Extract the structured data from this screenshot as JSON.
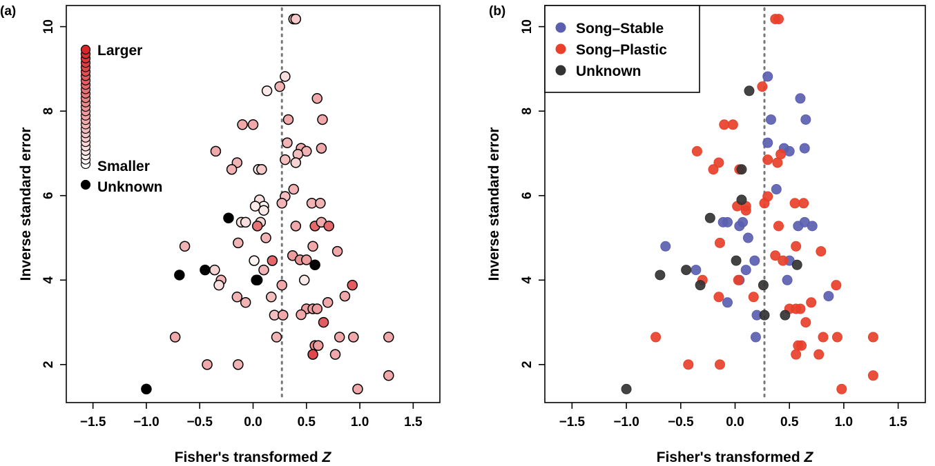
{
  "chart_data": [
    {
      "panel_label": "(a)",
      "type": "scatter",
      "xlabel": "Fisher's transformed",
      "xlabel_italic": "Z",
      "ylabel": "Inverse standard error",
      "xlim": [
        -1.75,
        1.75
      ],
      "ylim": [
        1.1,
        10.5
      ],
      "x_ticks": [
        -1.5,
        -1.0,
        -0.5,
        0.0,
        0.5,
        1.0,
        1.5
      ],
      "x_tick_labels": [
        "−1.5",
        "−1.0",
        "−0.5",
        "0.0",
        "0.5",
        "1.0",
        "1.5"
      ],
      "y_ticks": [
        2,
        4,
        6,
        8,
        10
      ],
      "y_tick_labels": [
        "2",
        "4",
        "6",
        "8",
        "10"
      ],
      "reference_line_x": 0.27,
      "legend": {
        "kind": "gradient",
        "top_label": "Larger",
        "bottom_label": "Smaller",
        "unknown_label": "Unknown",
        "gradient_from": "#ffffff",
        "gradient_to": "#d9262a",
        "unknown_color": "#000000",
        "steps": 27
      },
      "colors": {
        "smaller": "#ffffff",
        "larger": "#d9262a",
        "unknown": "#000000",
        "edge": "#000000",
        "reference_line": "#777777"
      },
      "points": [
        {
          "x": 0.38,
          "y": 10.18,
          "m": 0.3
        },
        {
          "x": 0.4,
          "y": 10.18,
          "m": 0.25
        },
        {
          "x": 0.3,
          "y": 8.82,
          "m": 0.15
        },
        {
          "x": 0.13,
          "y": 8.48,
          "m": 0.1
        },
        {
          "x": 0.25,
          "y": 8.58,
          "m": 0.35
        },
        {
          "x": 0.6,
          "y": 8.3,
          "m": 0.4
        },
        {
          "x": 0.33,
          "y": 7.8,
          "m": 0.4
        },
        {
          "x": 0.65,
          "y": 7.8,
          "m": 0.4
        },
        {
          "x": -0.1,
          "y": 7.68,
          "m": 0.4
        },
        {
          "x": 0.0,
          "y": 7.68,
          "m": 0.4
        },
        {
          "x": 0.32,
          "y": 7.25,
          "m": 0.35
        },
        {
          "x": 0.45,
          "y": 7.12,
          "m": 0.4
        },
        {
          "x": 0.5,
          "y": 7.05,
          "m": 0.35
        },
        {
          "x": 0.64,
          "y": 7.12,
          "m": 0.4
        },
        {
          "x": -0.35,
          "y": 7.05,
          "m": 0.4
        },
        {
          "x": 0.42,
          "y": 6.98,
          "m": 0.3
        },
        {
          "x": 0.3,
          "y": 6.85,
          "m": 0.3
        },
        {
          "x": 0.4,
          "y": 6.78,
          "m": 0.2
        },
        {
          "x": -0.15,
          "y": 6.78,
          "m": 0.35
        },
        {
          "x": -0.2,
          "y": 6.62,
          "m": 0.35
        },
        {
          "x": 0.05,
          "y": 6.62,
          "m": 0.1
        },
        {
          "x": 0.08,
          "y": 6.62,
          "m": 0.25
        },
        {
          "x": 0.38,
          "y": 6.15,
          "m": 0.35
        },
        {
          "x": 0.3,
          "y": 5.98,
          "m": 0.3
        },
        {
          "x": 0.27,
          "y": 5.82,
          "m": 0.35
        },
        {
          "x": 0.55,
          "y": 5.82,
          "m": 0.35
        },
        {
          "x": 0.63,
          "y": 5.82,
          "m": 0.35
        },
        {
          "x": 0.06,
          "y": 5.9,
          "m": 0.15
        },
        {
          "x": 0.1,
          "y": 5.75,
          "m": 0.05
        },
        {
          "x": 0.02,
          "y": 5.75,
          "m": 0.1
        },
        {
          "x": 0.1,
          "y": 5.65,
          "m": 0.1
        },
        {
          "x": -0.23,
          "y": 5.47,
          "m": -1
        },
        {
          "x": -0.11,
          "y": 5.37,
          "m": 0.15
        },
        {
          "x": -0.07,
          "y": 5.37,
          "m": 0.15
        },
        {
          "x": 0.07,
          "y": 5.37,
          "m": 0.2
        },
        {
          "x": 0.04,
          "y": 5.28,
          "m": 0.65
        },
        {
          "x": 0.4,
          "y": 5.28,
          "m": 0.4
        },
        {
          "x": 0.58,
          "y": 5.28,
          "m": 0.7
        },
        {
          "x": 0.64,
          "y": 5.37,
          "m": 0.4
        },
        {
          "x": 0.71,
          "y": 5.28,
          "m": 0.7
        },
        {
          "x": 0.12,
          "y": 5.0,
          "m": 0.35
        },
        {
          "x": -0.14,
          "y": 4.88,
          "m": 0.35
        },
        {
          "x": -0.64,
          "y": 4.8,
          "m": 0.35
        },
        {
          "x": 0.56,
          "y": 4.8,
          "m": 0.4
        },
        {
          "x": 0.79,
          "y": 4.68,
          "m": 0.4
        },
        {
          "x": 0.37,
          "y": 4.58,
          "m": 0.45
        },
        {
          "x": 0.44,
          "y": 4.48,
          "m": 0.5
        },
        {
          "x": 0.5,
          "y": 4.48,
          "m": 0.45
        },
        {
          "x": 0.18,
          "y": 4.46,
          "m": 0.7
        },
        {
          "x": 0.01,
          "y": 4.46,
          "m": 0.05
        },
        {
          "x": 0.58,
          "y": 4.36,
          "m": -1
        },
        {
          "x": 0.1,
          "y": 4.24,
          "m": 0.35
        },
        {
          "x": -0.36,
          "y": 4.24,
          "m": 0.2
        },
        {
          "x": -0.45,
          "y": 4.24,
          "m": -1
        },
        {
          "x": -0.69,
          "y": 4.12,
          "m": -1
        },
        {
          "x": -0.3,
          "y": 4.0,
          "m": 0.35
        },
        {
          "x": 0.04,
          "y": 4.0,
          "m": 0.4
        },
        {
          "x": 0.03,
          "y": 4.0,
          "m": -1
        },
        {
          "x": 0.48,
          "y": 4.0,
          "m": 0.1
        },
        {
          "x": -0.32,
          "y": 3.88,
          "m": 0.15
        },
        {
          "x": 0.27,
          "y": 3.88,
          "m": 0.4
        },
        {
          "x": 0.93,
          "y": 3.88,
          "m": 0.75
        },
        {
          "x": 0.86,
          "y": 3.62,
          "m": 0.4
        },
        {
          "x": -0.15,
          "y": 3.6,
          "m": 0.35
        },
        {
          "x": 0.17,
          "y": 3.6,
          "m": 0.3
        },
        {
          "x": -0.07,
          "y": 3.47,
          "m": 0.35
        },
        {
          "x": 0.7,
          "y": 3.47,
          "m": 0.4
        },
        {
          "x": 0.5,
          "y": 3.32,
          "m": 0.45
        },
        {
          "x": 0.56,
          "y": 3.32,
          "m": 0.45
        },
        {
          "x": 0.6,
          "y": 3.32,
          "m": 0.45
        },
        {
          "x": 0.45,
          "y": 3.18,
          "m": 0.4
        },
        {
          "x": 0.2,
          "y": 3.17,
          "m": 0.3
        },
        {
          "x": 0.28,
          "y": 3.17,
          "m": 0.4
        },
        {
          "x": 0.66,
          "y": 3.0,
          "m": 0.75
        },
        {
          "x": -0.73,
          "y": 2.65,
          "m": 0.4
        },
        {
          "x": 0.22,
          "y": 2.65,
          "m": 0.35
        },
        {
          "x": 0.81,
          "y": 2.65,
          "m": 0.4
        },
        {
          "x": 0.94,
          "y": 2.65,
          "m": 0.4
        },
        {
          "x": 1.27,
          "y": 2.65,
          "m": 0.4
        },
        {
          "x": 0.58,
          "y": 2.45,
          "m": 0.55
        },
        {
          "x": 0.61,
          "y": 2.45,
          "m": 0.45
        },
        {
          "x": 0.56,
          "y": 2.24,
          "m": 0.85
        },
        {
          "x": 0.77,
          "y": 2.24,
          "m": 0.4
        },
        {
          "x": -0.43,
          "y": 2.0,
          "m": 0.4
        },
        {
          "x": -0.14,
          "y": 2.0,
          "m": 0.35
        },
        {
          "x": 1.27,
          "y": 1.74,
          "m": 0.4
        },
        {
          "x": 0.98,
          "y": 1.42,
          "m": 0.4
        },
        {
          "x": -1.0,
          "y": 1.42,
          "m": -1
        }
      ]
    },
    {
      "panel_label": "(b)",
      "type": "scatter",
      "xlabel": "Fisher's transformed",
      "xlabel_italic": "Z",
      "ylabel": "Inverse standard error",
      "xlim": [
        -1.75,
        1.75
      ],
      "ylim": [
        1.1,
        10.5
      ],
      "x_ticks": [
        -1.5,
        -1.0,
        -0.5,
        0.0,
        0.5,
        1.0,
        1.5
      ],
      "x_tick_labels": [
        "−1.5",
        "−1.0",
        "−0.5",
        "0.0",
        "0.5",
        "1.0",
        "1.5"
      ],
      "y_ticks": [
        2,
        4,
        6,
        8,
        10
      ],
      "y_tick_labels": [
        "2",
        "4",
        "6",
        "8",
        "10"
      ],
      "reference_line_x": 0.27,
      "legend": {
        "kind": "categorical",
        "position": "top-left",
        "entries": [
          {
            "label": "Song–Stable",
            "group": "stable"
          },
          {
            "label": "Song–Plastic",
            "group": "plastic"
          },
          {
            "label": "Unknown",
            "group": "unknown"
          }
        ]
      },
      "colors": {
        "stable": "#5b5fb0",
        "plastic": "#e8402b",
        "unknown": "#333333",
        "reference_line": "#777777"
      },
      "series": [
        {
          "group": "stable",
          "points": [
            {
              "x": 0.3,
              "y": 8.82
            },
            {
              "x": 0.6,
              "y": 8.3
            },
            {
              "x": 0.33,
              "y": 7.8
            },
            {
              "x": 0.65,
              "y": 7.8
            },
            {
              "x": 0.3,
              "y": 7.25
            },
            {
              "x": 0.45,
              "y": 7.12
            },
            {
              "x": 0.5,
              "y": 7.05
            },
            {
              "x": 0.64,
              "y": 7.12
            },
            {
              "x": 0.38,
              "y": 6.15
            },
            {
              "x": -0.11,
              "y": 5.37
            },
            {
              "x": -0.07,
              "y": 5.37
            },
            {
              "x": 0.07,
              "y": 5.37
            },
            {
              "x": 0.04,
              "y": 5.28
            },
            {
              "x": 0.58,
              "y": 5.28
            },
            {
              "x": 0.64,
              "y": 5.37
            },
            {
              "x": 0.71,
              "y": 5.28
            },
            {
              "x": 0.12,
              "y": 5.0
            },
            {
              "x": -0.64,
              "y": 4.8
            },
            {
              "x": 0.18,
              "y": 4.46
            },
            {
              "x": 0.5,
              "y": 4.46
            },
            {
              "x": 0.1,
              "y": 4.24
            },
            {
              "x": -0.36,
              "y": 4.24
            },
            {
              "x": 0.04,
              "y": 4.0
            },
            {
              "x": 0.48,
              "y": 4.0
            },
            {
              "x": 0.86,
              "y": 3.62
            },
            {
              "x": -0.07,
              "y": 3.47
            },
            {
              "x": 0.2,
              "y": 3.17
            },
            {
              "x": 0.19,
              "y": 2.65
            }
          ]
        },
        {
          "group": "plastic",
          "points": [
            {
              "x": 0.37,
              "y": 10.18
            },
            {
              "x": 0.4,
              "y": 10.18
            },
            {
              "x": 0.25,
              "y": 8.58
            },
            {
              "x": -0.1,
              "y": 7.68
            },
            {
              "x": -0.02,
              "y": 7.68
            },
            {
              "x": -0.35,
              "y": 7.05
            },
            {
              "x": 0.42,
              "y": 6.98
            },
            {
              "x": 0.3,
              "y": 6.85
            },
            {
              "x": 0.39,
              "y": 6.78
            },
            {
              "x": -0.15,
              "y": 6.78
            },
            {
              "x": -0.2,
              "y": 6.62
            },
            {
              "x": 0.04,
              "y": 6.62
            },
            {
              "x": 0.3,
              "y": 5.98
            },
            {
              "x": 0.27,
              "y": 5.82
            },
            {
              "x": 0.55,
              "y": 5.82
            },
            {
              "x": 0.63,
              "y": 5.82
            },
            {
              "x": 0.02,
              "y": 5.75
            },
            {
              "x": 0.1,
              "y": 5.75
            },
            {
              "x": 0.1,
              "y": 5.65
            },
            {
              "x": 0.4,
              "y": 5.28
            },
            {
              "x": -0.14,
              "y": 4.88
            },
            {
              "x": 0.56,
              "y": 4.8
            },
            {
              "x": 0.79,
              "y": 4.68
            },
            {
              "x": 0.37,
              "y": 4.58
            },
            {
              "x": 0.44,
              "y": 4.46
            },
            {
              "x": -0.3,
              "y": 4.0
            },
            {
              "x": 0.03,
              "y": 4.0
            },
            {
              "x": 0.93,
              "y": 3.88
            },
            {
              "x": -0.15,
              "y": 3.6
            },
            {
              "x": 0.17,
              "y": 3.6
            },
            {
              "x": 0.7,
              "y": 3.47
            },
            {
              "x": 0.5,
              "y": 3.32
            },
            {
              "x": 0.56,
              "y": 3.32
            },
            {
              "x": 0.6,
              "y": 3.32
            },
            {
              "x": 0.65,
              "y": 3.0
            },
            {
              "x": -0.73,
              "y": 2.65
            },
            {
              "x": 0.81,
              "y": 2.65
            },
            {
              "x": 0.94,
              "y": 2.65
            },
            {
              "x": 1.27,
              "y": 2.65
            },
            {
              "x": 0.58,
              "y": 2.45
            },
            {
              "x": 0.61,
              "y": 2.45
            },
            {
              "x": 0.56,
              "y": 2.24
            },
            {
              "x": 0.77,
              "y": 2.24
            },
            {
              "x": -0.43,
              "y": 2.0
            },
            {
              "x": -0.14,
              "y": 2.0
            },
            {
              "x": 1.27,
              "y": 1.74
            },
            {
              "x": 0.98,
              "y": 1.42
            }
          ]
        },
        {
          "group": "unknown",
          "points": [
            {
              "x": 0.13,
              "y": 8.48
            },
            {
              "x": 0.06,
              "y": 6.62
            },
            {
              "x": 0.06,
              "y": 5.9
            },
            {
              "x": -0.23,
              "y": 5.47
            },
            {
              "x": 0.01,
              "y": 4.46
            },
            {
              "x": 0.57,
              "y": 4.36
            },
            {
              "x": -0.45,
              "y": 4.24
            },
            {
              "x": -0.69,
              "y": 4.12
            },
            {
              "x": -0.32,
              "y": 3.88
            },
            {
              "x": 0.26,
              "y": 3.88
            },
            {
              "x": 0.27,
              "y": 3.17
            },
            {
              "x": 0.46,
              "y": 3.17
            },
            {
              "x": -1.0,
              "y": 1.42
            }
          ]
        }
      ]
    }
  ]
}
